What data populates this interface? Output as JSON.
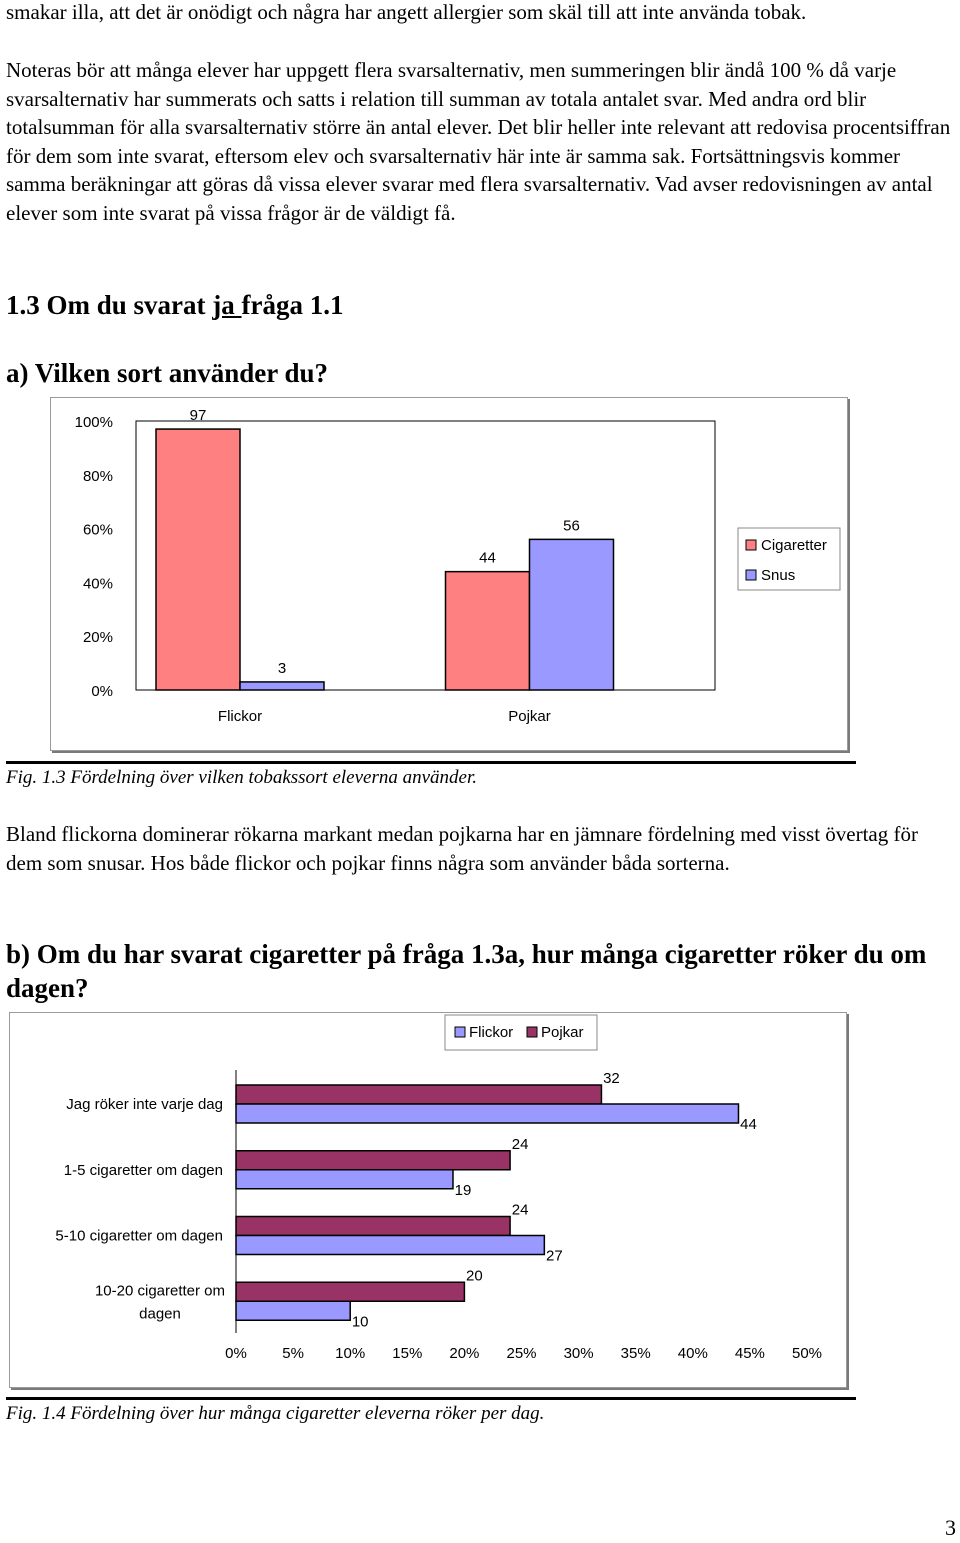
{
  "paragraphs": {
    "p1": "smakar illa, att det är onödigt och några har angett allergier som skäl till att inte använda tobak.",
    "p2": "Noteras bör att många elever har uppgett flera svarsalternativ, men summeringen blir ändå 100 % då varje svarsalternativ har summerats och satts i relation till summan av totala antalet svar. Med andra ord blir totalsumman för alla svarsalternativ större än antal elever. Det blir heller inte relevant att redovisa procentsiffran för dem som inte svarat, eftersom elev och svarsalternativ här inte är samma sak. Fortsättningsvis kommer samma beräkningar att göras då vissa elever svarar med flera svarsalternativ. Vad avser redovisningen av antal elever som inte svarat på vissa frågor är de väldigt få.",
    "p3": "Bland flickorna dominerar rökarna markant medan pojkarna har en jämnare fördelning med visst övertag för dem som snusar. Hos både flickor och pojkar finns några som använder båda sorterna."
  },
  "headings": {
    "h13_pre": "1.3 Om du svarat ",
    "h13_ul": "ja ",
    "h13_post": "fråga 1.1",
    "ha": "a) Vilken sort använder du?",
    "hb": "b) Om du har svarat cigaretter på fråga 1.3a, hur många cigaretter röker du om dagen?"
  },
  "captions": {
    "fig13": "Fig. 1.3 Fördelning över vilken tobakssort eleverna använder.",
    "fig14": "Fig. 1.4  Fördelning över hur många cigaretter eleverna röker per dag."
  },
  "page_number": "3",
  "colors": {
    "cigaretter": "#ff8080",
    "snus": "#9999ff",
    "flickor": "#9999ff",
    "pojkar": "#993366"
  },
  "chart_data": [
    {
      "type": "bar",
      "categories": [
        "Flickor",
        "Pojkar"
      ],
      "series": [
        {
          "name": "Cigaretter",
          "values": [
            97,
            44
          ]
        },
        {
          "name": "Snus",
          "values": [
            3,
            56
          ]
        }
      ],
      "ylim": [
        0,
        100
      ],
      "yticks": [
        "0%",
        "20%",
        "40%",
        "60%",
        "80%",
        "100%"
      ],
      "legend": "right"
    },
    {
      "type": "bar",
      "orientation": "horizontal",
      "categories": [
        "Jag röker inte varje dag",
        "1-5 cigaretter om dagen",
        "5-10 cigaretter om dagen",
        "10-20 cigaretter om dagen"
      ],
      "series": [
        {
          "name": "Flickor",
          "values": [
            44,
            19,
            27,
            10
          ]
        },
        {
          "name": "Pojkar",
          "values": [
            32,
            24,
            24,
            20
          ]
        }
      ],
      "xlim": [
        0,
        50
      ],
      "xticks": [
        "0%",
        "5%",
        "10%",
        "15%",
        "20%",
        "25%",
        "30%",
        "35%",
        "40%",
        "45%",
        "50%"
      ],
      "legend": "top"
    }
  ]
}
